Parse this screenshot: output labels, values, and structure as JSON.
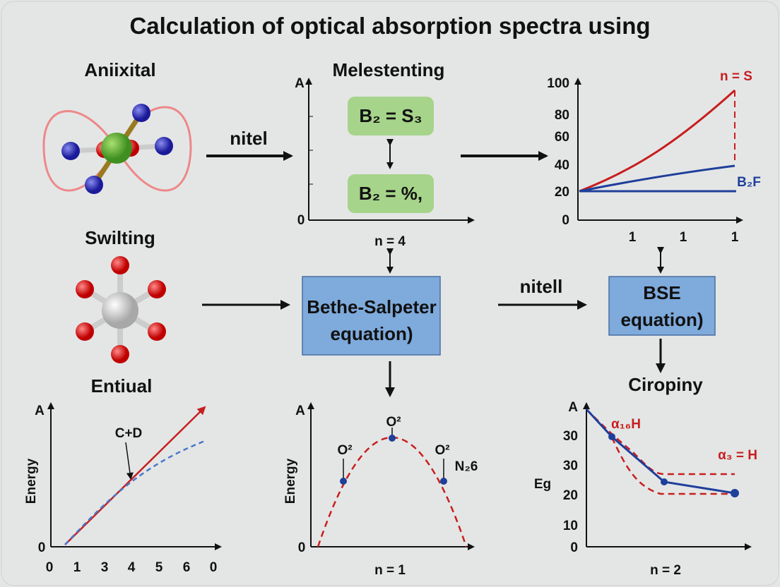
{
  "title": "Calculation of optical absorption spectra using",
  "top_left": {
    "label": "Aniixital"
  },
  "arrow_1": {
    "label": "nitel"
  },
  "top_middle": {
    "label": "Melestenting",
    "y_axis_label": "A",
    "y_zero": "0",
    "box_top": "B₂ = S₃",
    "box_bottom": "B₂ = %,",
    "below_label": "n = 4"
  },
  "top_right": {
    "y_ticks": [
      "100",
      "80",
      "60",
      "40",
      "20",
      "0"
    ],
    "x_ticks": [
      "1",
      "1",
      "1"
    ],
    "red_label": "n = S",
    "blue_label": "B₂F"
  },
  "middle_left": {
    "label": "Swilting"
  },
  "center_box": {
    "line1": "Bethe-Salpeter",
    "line2": "equation)"
  },
  "arrow_2": {
    "label": "nitell"
  },
  "right_box": {
    "line1": "BSE",
    "line2": "equation)"
  },
  "bottom_left": {
    "label": "Entiual",
    "y_axis_label": "A",
    "y_zero": "0",
    "y_title": "Energy",
    "x_ticks": [
      "0",
      "1",
      "3",
      "4",
      "5",
      "6",
      "0"
    ],
    "annotation": "C+D"
  },
  "bottom_middle": {
    "y_axis_label": "A",
    "y_zero": "0",
    "y_title": "Energy",
    "point_labels": [
      "O²",
      "O²",
      "O²"
    ],
    "side_label": "N₂6",
    "x_title": "n = 1"
  },
  "bottom_right": {
    "label": "Ciropiny",
    "y_ticks": [
      "A",
      "30",
      "30",
      "20",
      "10",
      "0"
    ],
    "y_title": "Eg",
    "label_upper": "α₁₆H",
    "label_right": "α₃ = H",
    "x_title": "n = 2"
  },
  "colors": {
    "red": "#c81e1e",
    "blue": "#1f3f9a",
    "green_box": "#a6d48a",
    "blue_box": "#7eaadc",
    "background": "#e4e6e6"
  }
}
